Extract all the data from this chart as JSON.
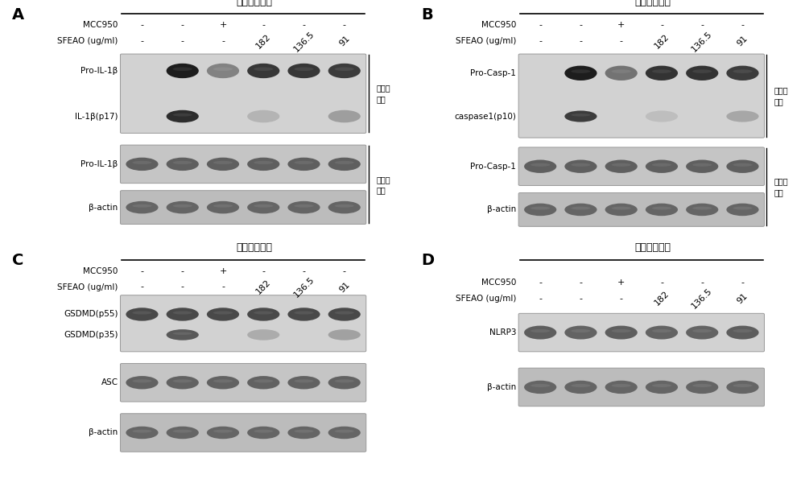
{
  "title": "尼日利亚菌素",
  "mcc950_row": [
    "-",
    "-",
    "+",
    "-",
    "-",
    "-"
  ],
  "sfeao_row": [
    "-",
    "-",
    "-",
    "182",
    "136.5",
    "91"
  ],
  "right_label_supernatant": "细胞上\n清液",
  "right_label_lysate": "细胞裂\n解液",
  "bg_super": "#d2d2d2",
  "bg_lysate": "#c0c0c0",
  "bg_lysate2": "#b8b8b8"
}
